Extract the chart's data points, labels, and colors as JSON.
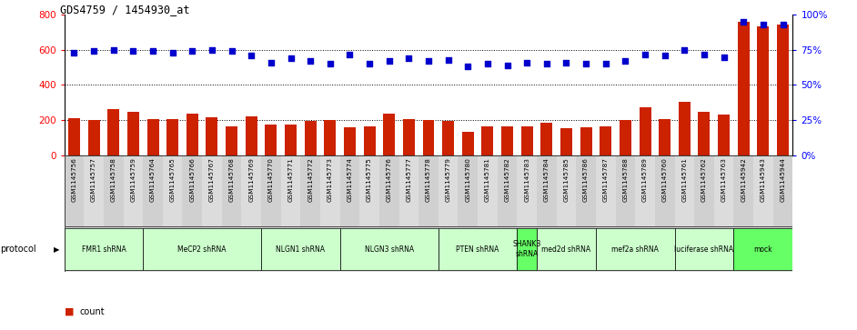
{
  "title": "GDS4759 / 1454930_at",
  "samples": [
    "GSM1145756",
    "GSM1145757",
    "GSM1145758",
    "GSM1145759",
    "GSM1145764",
    "GSM1145765",
    "GSM1145766",
    "GSM1145767",
    "GSM1145768",
    "GSM1145769",
    "GSM1145770",
    "GSM1145771",
    "GSM1145772",
    "GSM1145773",
    "GSM1145774",
    "GSM1145775",
    "GSM1145776",
    "GSM1145777",
    "GSM1145778",
    "GSM1145779",
    "GSM1145780",
    "GSM1145781",
    "GSM1145782",
    "GSM1145783",
    "GSM1145784",
    "GSM1145785",
    "GSM1145786",
    "GSM1145787",
    "GSM1145788",
    "GSM1145789",
    "GSM1145760",
    "GSM1145761",
    "GSM1145762",
    "GSM1145763",
    "GSM1145942",
    "GSM1145943",
    "GSM1145944"
  ],
  "bar_values": [
    210,
    200,
    260,
    245,
    205,
    205,
    235,
    215,
    165,
    220,
    175,
    175,
    195,
    200,
    160,
    165,
    235,
    205,
    200,
    195,
    135,
    165,
    165,
    165,
    185,
    155,
    160,
    165,
    200,
    275,
    205,
    305,
    245,
    230,
    760,
    735,
    745
  ],
  "dot_values": [
    73,
    74,
    75,
    74,
    74,
    73,
    74,
    75,
    74,
    71,
    66,
    69,
    67,
    65,
    72,
    65,
    67,
    69,
    67,
    68,
    63,
    65,
    64,
    66,
    65,
    66,
    65,
    65,
    67,
    72,
    71,
    75,
    72,
    70,
    95,
    93,
    93
  ],
  "protocols": [
    {
      "label": "FMR1 shRNA",
      "start": 0,
      "end": 4,
      "color": "#ccffcc"
    },
    {
      "label": "MeCP2 shRNA",
      "start": 4,
      "end": 10,
      "color": "#ccffcc"
    },
    {
      "label": "NLGN1 shRNA",
      "start": 10,
      "end": 14,
      "color": "#ccffcc"
    },
    {
      "label": "NLGN3 shRNA",
      "start": 14,
      "end": 19,
      "color": "#ccffcc"
    },
    {
      "label": "PTEN shRNA",
      "start": 19,
      "end": 23,
      "color": "#ccffcc"
    },
    {
      "label": "SHANK3\nshRNA",
      "start": 23,
      "end": 24,
      "color": "#66ff66"
    },
    {
      "label": "med2d shRNA",
      "start": 24,
      "end": 27,
      "color": "#ccffcc"
    },
    {
      "label": "mef2a shRNA",
      "start": 27,
      "end": 31,
      "color": "#ccffcc"
    },
    {
      "label": "luciferase shRNA",
      "start": 31,
      "end": 34,
      "color": "#ccffcc"
    },
    {
      "label": "mock",
      "start": 34,
      "end": 37,
      "color": "#66ff66"
    }
  ],
  "ylim_left": [
    0,
    800
  ],
  "ylim_right": [
    0,
    100
  ],
  "yticks_left": [
    0,
    200,
    400,
    600,
    800
  ],
  "yticks_right": [
    0,
    25,
    50,
    75,
    100
  ],
  "bar_color": "#cc2200",
  "dot_color": "#0000cc",
  "sample_bg_color": "#d8d8d8"
}
